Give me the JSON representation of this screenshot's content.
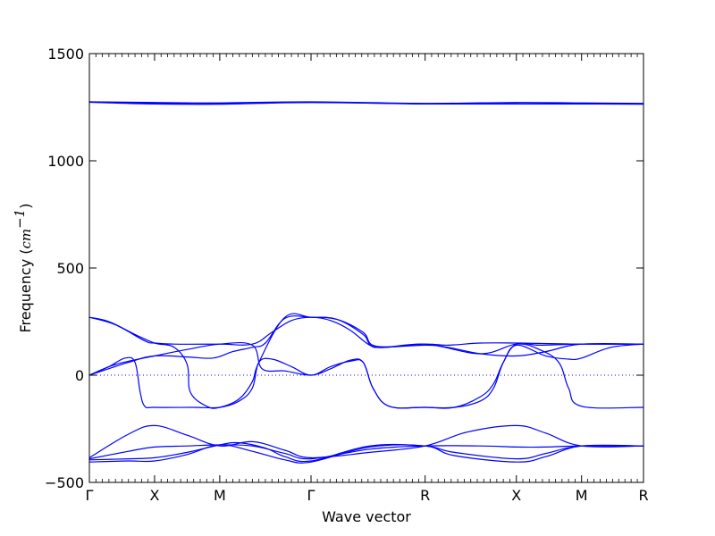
{
  "chart_data": {
    "type": "line",
    "xlabel": "Wave vector",
    "ylabel": {
      "prefix": "Frequency (",
      "unit_base": "cm",
      "unit_exp": "−1",
      "suffix": ")"
    },
    "ylim": [
      -500,
      1500
    ],
    "yticks": [
      -500,
      0,
      500,
      1000,
      1500
    ],
    "xlim": [
      0,
      8.5
    ],
    "high_symmetry_points": [
      {
        "label": "Γ",
        "x": 0
      },
      {
        "label": "X",
        "x": 1
      },
      {
        "label": "M",
        "x": 2
      },
      {
        "label": "Γ",
        "x": 3.4
      },
      {
        "label": "R",
        "x": 5.15
      },
      {
        "label": "X",
        "x": 6.55
      },
      {
        "label": "M",
        "x": 7.55
      },
      {
        "label": "R",
        "x": 8.5
      }
    ],
    "zero_line": {
      "y": 0,
      "style": "dotted"
    },
    "grid": false,
    "line_color": "#0000ff",
    "series": [
      {
        "values": [
          [
            0,
            1275
          ],
          [
            1,
            1272
          ],
          [
            2,
            1270
          ],
          [
            3.4,
            1275
          ],
          [
            5.15,
            1268
          ],
          [
            6.55,
            1272
          ],
          [
            7.55,
            1270
          ],
          [
            8.5,
            1268
          ]
        ]
      },
      {
        "values": [
          [
            0,
            1275
          ],
          [
            1,
            1268
          ],
          [
            2,
            1266
          ],
          [
            3.4,
            1273
          ],
          [
            5.15,
            1266
          ],
          [
            6.55,
            1266
          ],
          [
            7.55,
            1268
          ],
          [
            8.5,
            1265
          ]
        ]
      },
      {
        "values": [
          [
            0,
            1273
          ],
          [
            1,
            1265
          ],
          [
            2,
            1264
          ],
          [
            3.4,
            1272
          ],
          [
            5.15,
            1265
          ],
          [
            6.55,
            1265
          ],
          [
            7.55,
            1265
          ],
          [
            8.5,
            1264
          ]
        ]
      },
      {
        "values": [
          [
            0,
            270
          ],
          [
            0.4,
            235
          ],
          [
            0.85,
            160
          ],
          [
            1,
            150
          ],
          [
            1.3,
            145
          ],
          [
            2,
            145
          ],
          [
            2.5,
            145
          ],
          [
            2.8,
            200
          ],
          [
            3.1,
            255
          ],
          [
            3.4,
            270
          ],
          [
            3.7,
            255
          ],
          [
            4.0,
            210
          ],
          [
            4.3,
            140
          ],
          [
            4.5,
            130
          ],
          [
            5.15,
            140
          ],
          [
            5.5,
            130
          ],
          [
            6.0,
            100
          ],
          [
            6.55,
            90
          ],
          [
            7.0,
            110
          ],
          [
            7.55,
            145
          ],
          [
            8.5,
            145
          ]
        ]
      },
      {
        "values": [
          [
            0,
            270
          ],
          [
            0.3,
            250
          ],
          [
            0.7,
            190
          ],
          [
            1,
            150
          ],
          [
            1.3,
            130
          ],
          [
            1.5,
            50
          ],
          [
            1.55,
            -80
          ],
          [
            1.8,
            -145
          ],
          [
            2,
            -150
          ],
          [
            2.3,
            -110
          ],
          [
            2.5,
            -30
          ],
          [
            2.6,
            60
          ],
          [
            3.0,
            270
          ],
          [
            3.4,
            270
          ],
          [
            3.8,
            260
          ],
          [
            4.2,
            200
          ],
          [
            4.4,
            135
          ],
          [
            5.15,
            145
          ],
          [
            5.5,
            140
          ],
          [
            6.0,
            150
          ],
          [
            6.55,
            150
          ],
          [
            7.55,
            145
          ],
          [
            8.5,
            145
          ]
        ]
      },
      {
        "values": [
          [
            0,
            0
          ],
          [
            0.6,
            60
          ],
          [
            1,
            90
          ],
          [
            1.5,
            85
          ],
          [
            1.9,
            80
          ],
          [
            2.2,
            110
          ],
          [
            2.5,
            130
          ],
          [
            2.7,
            150
          ],
          [
            3.0,
            265
          ],
          [
            3.4,
            270
          ],
          [
            3.8,
            260
          ],
          [
            4.2,
            190
          ],
          [
            4.4,
            130
          ],
          [
            5.15,
            145
          ],
          [
            6.0,
            100
          ],
          [
            6.55,
            145
          ],
          [
            6.9,
            120
          ],
          [
            7.2,
            60
          ],
          [
            7.35,
            -60
          ],
          [
            7.55,
            -145
          ],
          [
            8.5,
            -150
          ]
        ]
      },
      {
        "values": [
          [
            0,
            0
          ],
          [
            0.3,
            40
          ],
          [
            0.55,
            80
          ],
          [
            0.7,
            60
          ],
          [
            0.78,
            -80
          ],
          [
            0.85,
            -145
          ],
          [
            1,
            -150
          ],
          [
            1.6,
            -150
          ],
          [
            2,
            -150
          ],
          [
            2.3,
            -120
          ],
          [
            2.5,
            -60
          ],
          [
            2.6,
            60
          ],
          [
            2.8,
            75
          ],
          [
            3.1,
            40
          ],
          [
            3.4,
            0
          ],
          [
            3.7,
            40
          ],
          [
            4.0,
            65
          ],
          [
            4.2,
            60
          ],
          [
            4.35,
            -60
          ],
          [
            4.6,
            -145
          ],
          [
            5.15,
            -150
          ],
          [
            5.6,
            -150
          ],
          [
            6.0,
            -120
          ],
          [
            6.2,
            -60
          ],
          [
            6.35,
            60
          ],
          [
            6.55,
            145
          ],
          [
            6.9,
            140
          ],
          [
            7.55,
            145
          ],
          [
            8.5,
            145
          ]
        ]
      },
      {
        "values": [
          [
            0,
            0
          ],
          [
            0.4,
            50
          ],
          [
            1,
            90
          ],
          [
            1.5,
            120
          ],
          [
            2,
            145
          ],
          [
            2.5,
            140
          ],
          [
            2.65,
            30
          ],
          [
            3.0,
            20
          ],
          [
            3.4,
            0
          ],
          [
            3.7,
            30
          ],
          [
            4.0,
            70
          ],
          [
            4.2,
            60
          ],
          [
            4.35,
            -60
          ],
          [
            4.6,
            -145
          ],
          [
            5.15,
            -150
          ],
          [
            5.6,
            -150
          ],
          [
            6.0,
            -100
          ],
          [
            6.2,
            -40
          ],
          [
            6.35,
            60
          ],
          [
            6.55,
            140
          ],
          [
            7.0,
            90
          ],
          [
            7.35,
            75
          ],
          [
            7.55,
            80
          ],
          [
            8.0,
            130
          ],
          [
            8.5,
            145
          ]
        ]
      },
      {
        "values": [
          [
            0,
            -385
          ],
          [
            0.6,
            -275
          ],
          [
            1,
            -235
          ],
          [
            1.5,
            -280
          ],
          [
            2,
            -330
          ],
          [
            2.5,
            -310
          ],
          [
            3.0,
            -350
          ],
          [
            3.4,
            -385
          ],
          [
            4.3,
            -360
          ],
          [
            5.15,
            -330
          ],
          [
            5.8,
            -265
          ],
          [
            6.55,
            -235
          ],
          [
            7.0,
            -270
          ],
          [
            7.55,
            -330
          ],
          [
            8.5,
            -330
          ]
        ]
      },
      {
        "values": [
          [
            0,
            -390
          ],
          [
            0.6,
            -355
          ],
          [
            1,
            -335
          ],
          [
            1.5,
            -330
          ],
          [
            2,
            -325
          ],
          [
            2.5,
            -330
          ],
          [
            3.0,
            -365
          ],
          [
            3.4,
            -390
          ],
          [
            4.3,
            -345
          ],
          [
            5.15,
            -330
          ],
          [
            6.0,
            -330
          ],
          [
            6.55,
            -335
          ],
          [
            7.0,
            -335
          ],
          [
            7.55,
            -330
          ],
          [
            8.5,
            -330
          ]
        ]
      },
      {
        "values": [
          [
            0,
            -395
          ],
          [
            0.6,
            -390
          ],
          [
            1,
            -385
          ],
          [
            1.5,
            -360
          ],
          [
            2,
            -325
          ],
          [
            2.3,
            -315
          ],
          [
            2.7,
            -340
          ],
          [
            3.0,
            -380
          ],
          [
            3.4,
            -400
          ],
          [
            4.3,
            -330
          ],
          [
            5.15,
            -330
          ],
          [
            5.6,
            -360
          ],
          [
            6.55,
            -390
          ],
          [
            7.0,
            -365
          ],
          [
            7.55,
            -330
          ],
          [
            8.5,
            -330
          ]
        ]
      },
      {
        "values": [
          [
            0,
            -405
          ],
          [
            0.6,
            -400
          ],
          [
            1,
            -400
          ],
          [
            1.5,
            -370
          ],
          [
            2,
            -325
          ],
          [
            2.5,
            -355
          ],
          [
            3.0,
            -395
          ],
          [
            3.4,
            -405
          ],
          [
            4.3,
            -335
          ],
          [
            5.15,
            -330
          ],
          [
            5.6,
            -375
          ],
          [
            6.55,
            -405
          ],
          [
            7.0,
            -380
          ],
          [
            7.55,
            -330
          ],
          [
            8.5,
            -330
          ]
        ]
      }
    ]
  }
}
